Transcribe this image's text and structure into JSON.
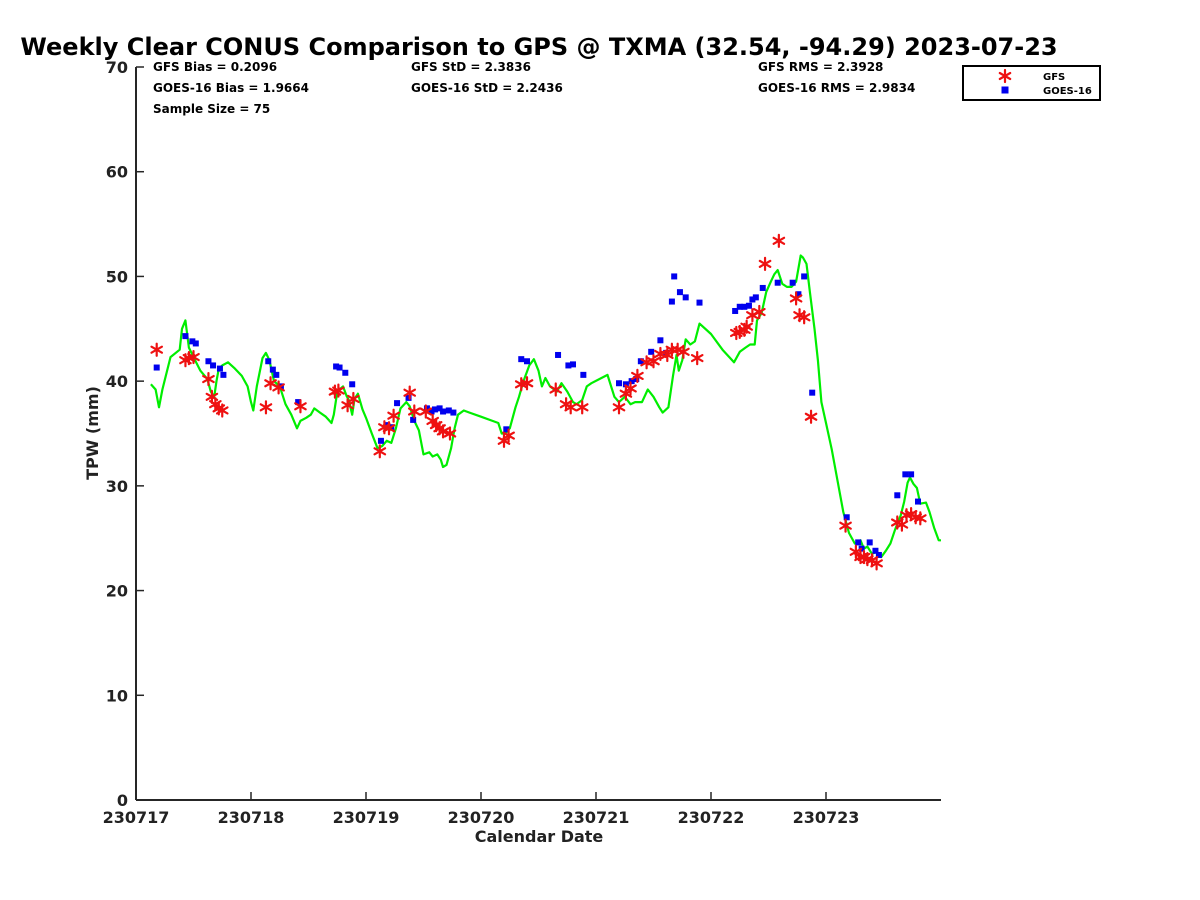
{
  "chart_data": {
    "type": "scatter",
    "title": "Weekly Clear CONUS Comparison to GPS @ TXMA (32.54, -94.29) 2023-07-23",
    "xlabel": "Calendar Date",
    "ylabel": "TPW (mm)",
    "x_ticks": [
      "230717",
      "230718",
      "230719",
      "230720",
      "230721",
      "230722",
      "230723"
    ],
    "x_range_days": [
      0,
      7
    ],
    "ylim": [
      0,
      70
    ],
    "y_ticks": [
      0,
      10,
      20,
      30,
      40,
      50,
      60,
      70
    ],
    "grid": false,
    "legend_position": "top-right",
    "stats": {
      "gfs_bias": "GFS Bias = 0.2096",
      "goes_bias": "GOES-16 Bias = 1.9664",
      "sample_size": "Sample Size = 75",
      "gfs_std": "GFS StD = 2.3836",
      "goes_std": "GOES-16 StD = 2.2436",
      "gfs_rms": "GFS RMS = 2.3928",
      "goes_rms": "GOES-16 RMS = 2.9834"
    },
    "series": [
      {
        "name": "GFS",
        "marker": "asterisk",
        "color": "#ee1111",
        "points": [
          [
            0.18,
            43.0
          ],
          [
            0.43,
            42.0
          ],
          [
            0.46,
            42.2
          ],
          [
            0.5,
            42.3
          ],
          [
            0.63,
            40.2
          ],
          [
            0.66,
            38.5
          ],
          [
            0.69,
            37.8
          ],
          [
            0.72,
            37.4
          ],
          [
            0.75,
            37.2
          ],
          [
            1.13,
            37.5
          ],
          [
            1.17,
            39.8
          ],
          [
            1.24,
            39.4
          ],
          [
            1.43,
            37.6
          ],
          [
            1.73,
            39.0
          ],
          [
            1.76,
            39.1
          ],
          [
            1.84,
            37.7
          ],
          [
            1.89,
            38.3
          ],
          [
            2.12,
            33.3
          ],
          [
            2.16,
            35.6
          ],
          [
            2.2,
            35.5
          ],
          [
            2.24,
            36.7
          ],
          [
            2.38,
            38.9
          ],
          [
            2.42,
            37.1
          ],
          [
            2.52,
            37.1
          ],
          [
            2.58,
            36.2
          ],
          [
            2.61,
            35.8
          ],
          [
            2.64,
            35.5
          ],
          [
            2.67,
            35.2
          ],
          [
            2.73,
            35.0
          ],
          [
            3.2,
            34.3
          ],
          [
            3.24,
            34.8
          ],
          [
            3.35,
            39.7
          ],
          [
            3.4,
            39.8
          ],
          [
            3.65,
            39.2
          ],
          [
            3.74,
            37.8
          ],
          [
            3.78,
            37.5
          ],
          [
            3.88,
            37.5
          ],
          [
            4.2,
            37.5
          ],
          [
            4.26,
            38.8
          ],
          [
            4.3,
            39.3
          ],
          [
            4.36,
            40.5
          ],
          [
            4.44,
            41.8
          ],
          [
            4.5,
            41.9
          ],
          [
            4.56,
            42.6
          ],
          [
            4.62,
            42.5
          ],
          [
            4.66,
            43.0
          ],
          [
            4.71,
            43.0
          ],
          [
            4.76,
            42.8
          ],
          [
            4.88,
            42.2
          ],
          [
            5.22,
            44.6
          ],
          [
            5.25,
            44.7
          ],
          [
            5.29,
            44.9
          ],
          [
            5.31,
            45.2
          ],
          [
            5.36,
            46.3
          ],
          [
            5.42,
            46.6
          ],
          [
            5.47,
            51.2
          ],
          [
            5.59,
            53.4
          ],
          [
            5.74,
            47.9
          ],
          [
            5.77,
            46.3
          ],
          [
            5.81,
            46.1
          ],
          [
            5.87,
            36.6
          ],
          [
            6.17,
            26.2
          ],
          [
            6.26,
            23.7
          ],
          [
            6.3,
            23.2
          ],
          [
            6.33,
            23.2
          ],
          [
            6.36,
            23.0
          ],
          [
            6.4,
            22.9
          ],
          [
            6.44,
            22.6
          ],
          [
            6.62,
            26.5
          ],
          [
            6.66,
            26.3
          ],
          [
            6.7,
            27.2
          ],
          [
            6.74,
            27.3
          ],
          [
            6.78,
            27.0
          ],
          [
            6.82,
            26.9
          ]
        ]
      },
      {
        "name": "GOES-16",
        "marker": "square",
        "color": "#0000ee",
        "points": [
          [
            0.18,
            41.3
          ],
          [
            0.43,
            44.3
          ],
          [
            0.49,
            43.8
          ],
          [
            0.52,
            43.6
          ],
          [
            0.63,
            41.9
          ],
          [
            0.67,
            41.5
          ],
          [
            0.73,
            41.2
          ],
          [
            0.76,
            40.6
          ],
          [
            1.15,
            41.9
          ],
          [
            1.19,
            41.1
          ],
          [
            1.22,
            40.6
          ],
          [
            1.26,
            39.5
          ],
          [
            1.41,
            38.0
          ],
          [
            1.74,
            41.4
          ],
          [
            1.77,
            41.3
          ],
          [
            1.82,
            40.8
          ],
          [
            1.88,
            39.7
          ],
          [
            2.13,
            34.3
          ],
          [
            2.18,
            35.8
          ],
          [
            2.22,
            35.6
          ],
          [
            2.27,
            37.9
          ],
          [
            2.37,
            38.4
          ],
          [
            2.41,
            36.3
          ],
          [
            2.53,
            37.4
          ],
          [
            2.57,
            37.1
          ],
          [
            2.6,
            37.3
          ],
          [
            2.64,
            37.4
          ],
          [
            2.67,
            37.1
          ],
          [
            2.72,
            37.2
          ],
          [
            2.76,
            37.0
          ],
          [
            3.22,
            35.4
          ],
          [
            3.35,
            42.1
          ],
          [
            3.4,
            41.9
          ],
          [
            3.67,
            42.5
          ],
          [
            3.76,
            41.5
          ],
          [
            3.8,
            41.6
          ],
          [
            3.89,
            40.6
          ],
          [
            4.2,
            39.8
          ],
          [
            4.26,
            39.7
          ],
          [
            4.31,
            40.0
          ],
          [
            4.35,
            40.2
          ],
          [
            4.39,
            41.9
          ],
          [
            4.48,
            42.8
          ],
          [
            4.56,
            43.9
          ],
          [
            4.61,
            42.7
          ],
          [
            4.66,
            47.6
          ],
          [
            4.68,
            50.0
          ],
          [
            4.73,
            48.5
          ],
          [
            4.78,
            48.0
          ],
          [
            4.9,
            47.5
          ],
          [
            5.21,
            46.7
          ],
          [
            5.25,
            47.1
          ],
          [
            5.29,
            47.1
          ],
          [
            5.33,
            47.2
          ],
          [
            5.36,
            47.8
          ],
          [
            5.39,
            48.0
          ],
          [
            5.45,
            48.9
          ],
          [
            5.58,
            49.4
          ],
          [
            5.71,
            49.4
          ],
          [
            5.76,
            48.3
          ],
          [
            5.81,
            50.0
          ],
          [
            5.88,
            38.9
          ],
          [
            6.18,
            27.0
          ],
          [
            6.28,
            24.6
          ],
          [
            6.31,
            24.0
          ],
          [
            6.38,
            24.6
          ],
          [
            6.43,
            23.8
          ],
          [
            6.46,
            23.4
          ],
          [
            6.62,
            29.1
          ],
          [
            6.69,
            31.1
          ],
          [
            6.74,
            31.1
          ],
          [
            6.8,
            28.5
          ]
        ]
      },
      {
        "name": "",
        "marker": "line",
        "color": "#00ee00",
        "points": [
          [
            0.13,
            39.7
          ],
          [
            0.17,
            39.2
          ],
          [
            0.2,
            37.5
          ],
          [
            0.23,
            39.2
          ],
          [
            0.3,
            42.3
          ],
          [
            0.38,
            43.0
          ],
          [
            0.4,
            45.0
          ],
          [
            0.43,
            45.8
          ],
          [
            0.46,
            43.2
          ],
          [
            0.5,
            42.3
          ],
          [
            0.56,
            41.0
          ],
          [
            0.62,
            40.2
          ],
          [
            0.65,
            39.0
          ],
          [
            0.68,
            38.5
          ],
          [
            0.7,
            40.0
          ],
          [
            0.72,
            41.2
          ],
          [
            0.75,
            41.5
          ],
          [
            0.8,
            41.8
          ],
          [
            0.86,
            41.2
          ],
          [
            0.92,
            40.5
          ],
          [
            0.97,
            39.5
          ],
          [
            1.0,
            38.0
          ],
          [
            1.02,
            37.2
          ],
          [
            1.05,
            39.5
          ],
          [
            1.1,
            42.2
          ],
          [
            1.13,
            42.7
          ],
          [
            1.16,
            42.0
          ],
          [
            1.2,
            40.0
          ],
          [
            1.25,
            39.5
          ],
          [
            1.3,
            37.8
          ],
          [
            1.35,
            36.8
          ],
          [
            1.4,
            35.5
          ],
          [
            1.43,
            36.2
          ],
          [
            1.48,
            36.5
          ],
          [
            1.52,
            36.8
          ],
          [
            1.55,
            37.4
          ],
          [
            1.6,
            37.0
          ],
          [
            1.65,
            36.6
          ],
          [
            1.7,
            36.0
          ],
          [
            1.72,
            36.8
          ],
          [
            1.75,
            39.0
          ],
          [
            1.8,
            39.5
          ],
          [
            1.83,
            38.6
          ],
          [
            1.85,
            38.2
          ],
          [
            1.88,
            36.8
          ],
          [
            1.9,
            38.3
          ],
          [
            1.93,
            38.8
          ],
          [
            1.97,
            37.3
          ],
          [
            2.0,
            36.5
          ],
          [
            2.05,
            35.0
          ],
          [
            2.1,
            33.6
          ],
          [
            2.14,
            33.8
          ],
          [
            2.18,
            34.3
          ],
          [
            2.22,
            34.1
          ],
          [
            2.26,
            35.5
          ],
          [
            2.3,
            37.4
          ],
          [
            2.35,
            38.0
          ],
          [
            2.38,
            37.6
          ],
          [
            2.42,
            36.2
          ],
          [
            2.46,
            35.3
          ],
          [
            2.5,
            33.0
          ],
          [
            2.55,
            33.2
          ],
          [
            2.58,
            32.8
          ],
          [
            2.62,
            33.0
          ],
          [
            2.65,
            32.5
          ],
          [
            2.67,
            31.8
          ],
          [
            2.7,
            32.0
          ],
          [
            2.74,
            33.6
          ],
          [
            2.77,
            35.5
          ],
          [
            2.8,
            36.8
          ],
          [
            2.85,
            37.2
          ],
          [
            2.9,
            37.0
          ],
          [
            3.0,
            36.6
          ],
          [
            3.1,
            36.2
          ],
          [
            3.15,
            36.0
          ],
          [
            3.18,
            35.0
          ],
          [
            3.21,
            35.0
          ],
          [
            3.25,
            35.5
          ],
          [
            3.3,
            37.5
          ],
          [
            3.33,
            38.5
          ],
          [
            3.37,
            40.0
          ],
          [
            3.42,
            41.5
          ],
          [
            3.46,
            42.1
          ],
          [
            3.5,
            41.0
          ],
          [
            3.53,
            39.5
          ],
          [
            3.56,
            40.3
          ],
          [
            3.6,
            39.5
          ],
          [
            3.66,
            39.0
          ],
          [
            3.7,
            39.8
          ],
          [
            3.75,
            39.0
          ],
          [
            3.8,
            38.0
          ],
          [
            3.83,
            37.8
          ],
          [
            3.88,
            38.2
          ],
          [
            3.92,
            39.5
          ],
          [
            3.96,
            39.8
          ],
          [
            4.1,
            40.6
          ],
          [
            4.16,
            38.5
          ],
          [
            4.2,
            38.0
          ],
          [
            4.25,
            38.5
          ],
          [
            4.3,
            37.8
          ],
          [
            4.34,
            38.0
          ],
          [
            4.4,
            38.0
          ],
          [
            4.45,
            39.2
          ],
          [
            4.5,
            38.5
          ],
          [
            4.55,
            37.5
          ],
          [
            4.58,
            37.0
          ],
          [
            4.63,
            37.5
          ],
          [
            4.67,
            40.5
          ],
          [
            4.7,
            42.5
          ],
          [
            4.72,
            41.0
          ],
          [
            4.75,
            42.0
          ],
          [
            4.78,
            44.0
          ],
          [
            4.82,
            43.5
          ],
          [
            4.86,
            43.8
          ],
          [
            4.9,
            45.5
          ],
          [
            5.0,
            44.5
          ],
          [
            5.1,
            43.0
          ],
          [
            5.2,
            41.8
          ],
          [
            5.25,
            42.8
          ],
          [
            5.3,
            43.2
          ],
          [
            5.34,
            43.5
          ],
          [
            5.38,
            43.5
          ],
          [
            5.4,
            45.8
          ],
          [
            5.44,
            46.5
          ],
          [
            5.48,
            48.5
          ],
          [
            5.52,
            49.5
          ],
          [
            5.55,
            50.2
          ],
          [
            5.58,
            50.6
          ],
          [
            5.62,
            49.3
          ],
          [
            5.66,
            49.0
          ],
          [
            5.7,
            49.0
          ],
          [
            5.74,
            49.5
          ],
          [
            5.78,
            52.0
          ],
          [
            5.8,
            51.8
          ],
          [
            5.83,
            51.2
          ],
          [
            5.86,
            48.5
          ],
          [
            5.9,
            45.0
          ],
          [
            5.93,
            42.0
          ],
          [
            5.96,
            38.0
          ],
          [
            6.0,
            36.0
          ],
          [
            6.05,
            33.5
          ],
          [
            6.1,
            30.5
          ],
          [
            6.15,
            27.5
          ],
          [
            6.2,
            25.5
          ],
          [
            6.25,
            24.5
          ],
          [
            6.3,
            24.8
          ],
          [
            6.33,
            24.0
          ],
          [
            6.36,
            24.2
          ],
          [
            6.4,
            23.5
          ],
          [
            6.44,
            23.7
          ],
          [
            6.48,
            23.2
          ],
          [
            6.52,
            23.8
          ],
          [
            6.56,
            24.5
          ],
          [
            6.6,
            25.8
          ],
          [
            6.65,
            27.2
          ],
          [
            6.68,
            28.5
          ],
          [
            6.71,
            30.3
          ],
          [
            6.73,
            30.8
          ],
          [
            6.76,
            30.2
          ],
          [
            6.79,
            29.8
          ],
          [
            6.82,
            28.3
          ],
          [
            6.87,
            28.4
          ],
          [
            6.9,
            27.5
          ],
          [
            6.94,
            26.0
          ],
          [
            6.98,
            24.8
          ],
          [
            7.0,
            24.8
          ]
        ]
      }
    ]
  }
}
